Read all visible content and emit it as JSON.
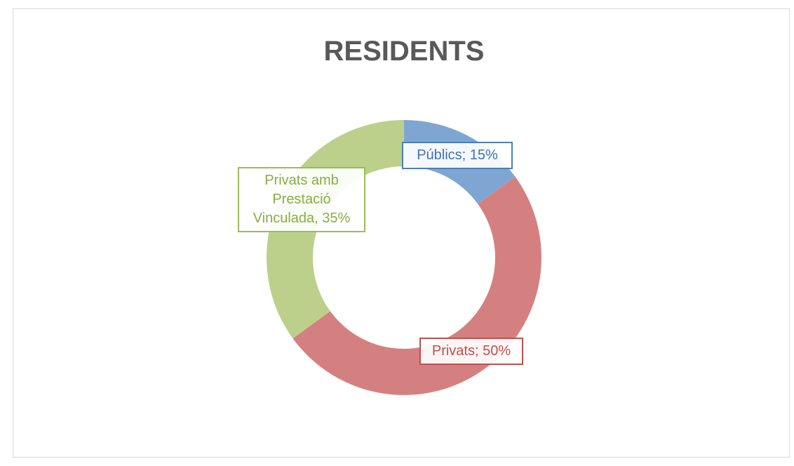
{
  "chart_data": {
    "type": "donut",
    "title": "RESIDENTS",
    "categories": [
      "Públics",
      "Privats",
      "Privats amb Prestació Vinculada"
    ],
    "values": [
      15,
      50,
      35
    ],
    "value_labels": [
      "Públics; 15%",
      "Privats; 50%",
      "Privats amb Prestació Vinculada, 35%"
    ],
    "colors": [
      "#7fa6d3",
      "#d58080",
      "#bcd08b"
    ]
  }
}
